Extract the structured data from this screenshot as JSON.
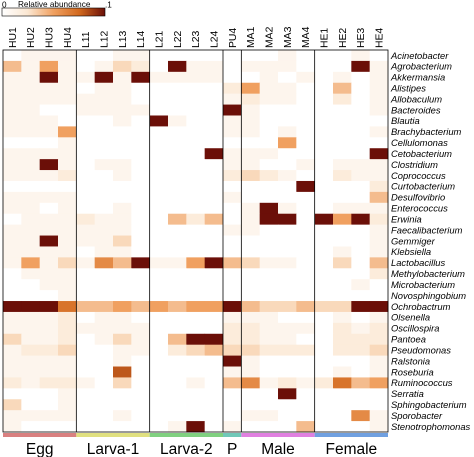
{
  "chart_data": {
    "type": "heatmap",
    "color_scale": {
      "label": "Relative abundance",
      "min": 0,
      "max": 0.1,
      "min_label": "0",
      "max_label": ".1",
      "colors": [
        "#ffffff",
        "#fbe7d2",
        "#f0a060",
        "#d2691e",
        "#6b0f08"
      ]
    },
    "samples": [
      "HU1",
      "HU2",
      "HU3",
      "HU4",
      "L11",
      "L12",
      "L13",
      "L14",
      "L21",
      "L22",
      "L23",
      "L24",
      "PU4",
      "MA1",
      "MA2",
      "MA3",
      "MA4",
      "HE1",
      "HE2",
      "HE3",
      "HE4"
    ],
    "groups": [
      {
        "name": "Egg",
        "count": 4,
        "color": "#d98080"
      },
      {
        "name": "Larva-1",
        "count": 4,
        "color": "#e0e080"
      },
      {
        "name": "Larva-2",
        "count": 4,
        "color": "#80d080"
      },
      {
        "name": "P",
        "count": 1,
        "color": "#70c8b8"
      },
      {
        "name": "Male",
        "count": 4,
        "color": "#e080e0"
      },
      {
        "name": "Female",
        "count": 4,
        "color": "#70a0e0"
      }
    ],
    "genera": [
      "Acinetobacter",
      "Agrobacterium",
      "Akkermansia",
      "Alistipes",
      "Allobaculum",
      "Bacteroides",
      "Blautia",
      "Brachybacterium",
      "Cellulomonas",
      "Cetobacterium",
      "Clostridium",
      "Coprococcus",
      "Curtobacterium",
      "Desulfovibrio",
      "Enterococcus",
      "Erwinia",
      "Faecalibacterium",
      "Gemmiger",
      "Klebsiella",
      "Lactobacillus",
      "Methylobacterium",
      "Microbacterium",
      "Novosphingobium",
      "Ochrobactrum",
      "Olsenella",
      "Oscillospira",
      "Pantoea",
      "Pseudomonas",
      "Ralstonia",
      "Roseburia",
      "Ruminococcus",
      "Serratia",
      "Sphingobacterium",
      "Sporobacter",
      "Stenotrophomonas"
    ],
    "values": [
      [
        0.0,
        0.01,
        0.01,
        0.01,
        0.0,
        0.0,
        0.01,
        0.01,
        0.0,
        0.0,
        0.0,
        0.0,
        0.0,
        0.0,
        0.0,
        0.01,
        0.0,
        0.0,
        0.0,
        0.01,
        0.0
      ],
      [
        0.04,
        0.01,
        0.05,
        0.01,
        0.0,
        0.01,
        0.03,
        0.02,
        0.0,
        0.1,
        0.01,
        0.01,
        0.0,
        0.01,
        0.01,
        0.01,
        0.0,
        0.0,
        0.0,
        0.1,
        0.01
      ],
      [
        0.01,
        0.01,
        0.1,
        0.01,
        0.01,
        0.1,
        0.01,
        0.1,
        0.01,
        0.01,
        0.01,
        0.01,
        0.0,
        0.0,
        0.01,
        0.0,
        0.01,
        0.0,
        0.01,
        0.0,
        0.01
      ],
      [
        0.01,
        0.01,
        0.01,
        0.01,
        0.0,
        0.01,
        0.01,
        0.0,
        0.0,
        0.0,
        0.0,
        0.0,
        0.02,
        0.05,
        0.01,
        0.01,
        0.0,
        0.0,
        0.04,
        0.0,
        0.01
      ],
      [
        0.01,
        0.01,
        0.01,
        0.01,
        0.01,
        0.01,
        0.01,
        0.0,
        0.0,
        0.0,
        0.0,
        0.0,
        0.01,
        0.02,
        0.01,
        0.01,
        0.0,
        0.0,
        0.02,
        0.0,
        0.01
      ],
      [
        0.01,
        0.01,
        0.0,
        0.0,
        0.01,
        0.01,
        0.01,
        0.01,
        0.0,
        0.0,
        0.0,
        0.0,
        0.1,
        0.01,
        0.0,
        0.0,
        0.0,
        0.0,
        0.0,
        0.0,
        0.01
      ],
      [
        0.01,
        0.01,
        0.01,
        0.0,
        0.0,
        0.0,
        0.01,
        0.0,
        0.1,
        0.01,
        0.0,
        0.0,
        0.01,
        0.01,
        0.0,
        0.0,
        0.0,
        0.0,
        0.0,
        0.0,
        0.0
      ],
      [
        0.01,
        0.01,
        0.01,
        0.05,
        0.0,
        0.0,
        0.0,
        0.0,
        0.0,
        0.0,
        0.0,
        0.0,
        0.01,
        0.01,
        0.0,
        0.01,
        0.0,
        0.0,
        0.0,
        0.0,
        0.01
      ],
      [
        0.0,
        0.0,
        0.0,
        0.01,
        0.0,
        0.0,
        0.0,
        0.0,
        0.0,
        0.0,
        0.0,
        0.0,
        0.0,
        0.0,
        0.0,
        0.05,
        0.0,
        0.0,
        0.0,
        0.0,
        0.0
      ],
      [
        0.01,
        0.01,
        0.01,
        0.01,
        0.0,
        0.0,
        0.0,
        0.0,
        0.0,
        0.0,
        0.0,
        0.1,
        0.01,
        0.01,
        0.01,
        0.0,
        0.0,
        0.0,
        0.0,
        0.0,
        0.1
      ],
      [
        0.01,
        0.01,
        0.1,
        0.01,
        0.0,
        0.01,
        0.01,
        0.0,
        0.0,
        0.0,
        0.0,
        0.0,
        0.01,
        0.01,
        0.0,
        0.0,
        0.01,
        0.0,
        0.01,
        0.01,
        0.01
      ],
      [
        0.01,
        0.01,
        0.01,
        0.02,
        0.0,
        0.0,
        0.01,
        0.0,
        0.0,
        0.0,
        0.0,
        0.0,
        0.02,
        0.03,
        0.02,
        0.01,
        0.0,
        0.0,
        0.02,
        0.01,
        0.01
      ],
      [
        0.0,
        0.0,
        0.0,
        0.0,
        0.0,
        0.0,
        0.0,
        0.0,
        0.0,
        0.0,
        0.0,
        0.0,
        0.0,
        0.0,
        0.0,
        0.0,
        0.1,
        0.0,
        0.0,
        0.0,
        0.02
      ],
      [
        0.01,
        0.01,
        0.01,
        0.01,
        0.0,
        0.0,
        0.0,
        0.0,
        0.0,
        0.0,
        0.0,
        0.0,
        0.01,
        0.0,
        0.0,
        0.0,
        0.0,
        0.0,
        0.0,
        0.0,
        0.04
      ],
      [
        0.01,
        0.01,
        0.0,
        0.01,
        0.0,
        0.0,
        0.01,
        0.0,
        0.0,
        0.0,
        0.0,
        0.0,
        0.0,
        0.01,
        0.1,
        0.01,
        0.0,
        0.0,
        0.01,
        0.01,
        0.01
      ],
      [
        0.0,
        0.01,
        0.01,
        0.01,
        0.02,
        0.01,
        0.01,
        0.0,
        0.0,
        0.04,
        0.02,
        0.04,
        0.0,
        0.01,
        0.1,
        0.1,
        0.0,
        0.1,
        0.05,
        0.1,
        0.02
      ],
      [
        0.01,
        0.01,
        0.01,
        0.01,
        0.01,
        0.01,
        0.01,
        0.0,
        0.0,
        0.0,
        0.0,
        0.0,
        0.01,
        0.01,
        0.0,
        0.0,
        0.0,
        0.0,
        0.0,
        0.0,
        0.01
      ],
      [
        0.01,
        0.01,
        0.1,
        0.01,
        0.01,
        0.01,
        0.03,
        0.0,
        0.0,
        0.0,
        0.0,
        0.0,
        0.0,
        0.0,
        0.0,
        0.0,
        0.0,
        0.0,
        0.0,
        0.0,
        0.01
      ],
      [
        0.01,
        0.01,
        0.01,
        0.01,
        0.0,
        0.01,
        0.01,
        0.0,
        0.0,
        0.0,
        0.0,
        0.0,
        0.0,
        0.0,
        0.0,
        0.0,
        0.0,
        0.0,
        0.01,
        0.0,
        0.01
      ],
      [
        0.01,
        0.05,
        0.01,
        0.03,
        0.01,
        0.06,
        0.04,
        0.1,
        0.01,
        0.01,
        0.05,
        0.1,
        0.04,
        0.03,
        0.01,
        0.01,
        0.0,
        0.0,
        0.03,
        0.0,
        0.04
      ],
      [
        0.0,
        0.01,
        0.01,
        0.01,
        0.0,
        0.0,
        0.0,
        0.0,
        0.0,
        0.0,
        0.0,
        0.0,
        0.0,
        0.0,
        0.0,
        0.0,
        0.0,
        0.0,
        0.0,
        0.0,
        0.02
      ],
      [
        0.0,
        0.0,
        0.01,
        0.01,
        0.0,
        0.0,
        0.0,
        0.0,
        0.0,
        0.0,
        0.0,
        0.0,
        0.0,
        0.0,
        0.0,
        0.0,
        0.0,
        0.0,
        0.0,
        0.01,
        0.0
      ],
      [
        0.0,
        0.0,
        0.0,
        0.01,
        0.0,
        0.0,
        0.0,
        0.0,
        0.0,
        0.0,
        0.0,
        0.0,
        0.0,
        0.0,
        0.0,
        0.0,
        0.0,
        0.0,
        0.0,
        0.0,
        0.0
      ],
      [
        0.1,
        0.1,
        0.1,
        0.07,
        0.04,
        0.04,
        0.05,
        0.04,
        0.05,
        0.04,
        0.05,
        0.05,
        0.1,
        0.04,
        0.03,
        0.03,
        0.04,
        0.03,
        0.03,
        0.1,
        0.1
      ],
      [
        0.01,
        0.01,
        0.01,
        0.02,
        0.0,
        0.01,
        0.01,
        0.0,
        0.0,
        0.0,
        0.0,
        0.0,
        0.01,
        0.01,
        0.01,
        0.0,
        0.0,
        0.0,
        0.01,
        0.0,
        0.01
      ],
      [
        0.01,
        0.01,
        0.01,
        0.02,
        0.01,
        0.01,
        0.01,
        0.01,
        0.0,
        0.0,
        0.0,
        0.0,
        0.02,
        0.02,
        0.01,
        0.01,
        0.01,
        0.0,
        0.02,
        0.01,
        0.02
      ],
      [
        0.03,
        0.01,
        0.01,
        0.02,
        0.0,
        0.01,
        0.03,
        0.01,
        0.0,
        0.04,
        0.1,
        0.1,
        0.02,
        0.02,
        0.01,
        0.01,
        0.0,
        0.0,
        0.02,
        0.02,
        0.02
      ],
      [
        0.01,
        0.02,
        0.02,
        0.03,
        0.0,
        0.0,
        0.01,
        0.01,
        0.0,
        0.02,
        0.03,
        0.04,
        0.03,
        0.03,
        0.02,
        0.02,
        0.02,
        0.0,
        0.02,
        0.02,
        0.03
      ],
      [
        0.01,
        0.01,
        0.01,
        0.01,
        0.0,
        0.0,
        0.01,
        0.0,
        0.0,
        0.0,
        0.0,
        0.0,
        0.1,
        0.01,
        0.0,
        0.0,
        0.0,
        0.0,
        0.0,
        0.0,
        0.01
      ],
      [
        0.01,
        0.01,
        0.01,
        0.01,
        0.0,
        0.0,
        0.08,
        0.0,
        0.0,
        0.0,
        0.0,
        0.0,
        0.01,
        0.01,
        0.0,
        0.0,
        0.0,
        0.0,
        0.01,
        0.0,
        0.01
      ],
      [
        0.02,
        0.01,
        0.02,
        0.02,
        0.01,
        0.0,
        0.03,
        0.0,
        0.0,
        0.0,
        0.01,
        0.0,
        0.04,
        0.06,
        0.01,
        0.02,
        0.01,
        0.02,
        0.07,
        0.04,
        0.05
      ],
      [
        0.0,
        0.0,
        0.0,
        0.01,
        0.0,
        0.0,
        0.0,
        0.0,
        0.0,
        0.0,
        0.0,
        0.0,
        0.0,
        0.0,
        0.0,
        0.1,
        0.0,
        0.0,
        0.0,
        0.0,
        0.0
      ],
      [
        0.03,
        0.0,
        0.0,
        0.01,
        0.0,
        0.0,
        0.0,
        0.0,
        0.0,
        0.0,
        0.0,
        0.0,
        0.0,
        0.0,
        0.0,
        0.0,
        0.0,
        0.0,
        0.0,
        0.0,
        0.0
      ],
      [
        0.01,
        0.01,
        0.01,
        0.01,
        0.0,
        0.0,
        0.01,
        0.0,
        0.0,
        0.0,
        0.0,
        0.0,
        0.0,
        0.01,
        0.01,
        0.0,
        0.0,
        0.0,
        0.0,
        0.06,
        0.01
      ],
      [
        0.01,
        0.0,
        0.0,
        0.0,
        0.0,
        0.0,
        0.0,
        0.0,
        0.0,
        0.01,
        0.1,
        0.0,
        0.01,
        0.0,
        0.0,
        0.0,
        0.04,
        0.0,
        0.0,
        0.0,
        0.01
      ]
    ]
  }
}
